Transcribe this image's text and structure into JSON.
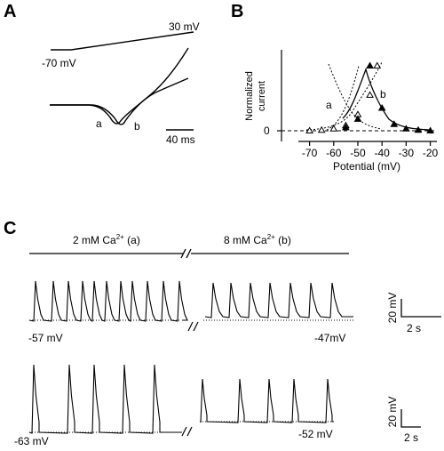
{
  "panels": {
    "A": {
      "letter": "A",
      "ramp_start_label": "-70 mV",
      "ramp_end_label": "30 mV",
      "trace_a_label": "a",
      "trace_b_label": "b",
      "scale_time_label": "40 ms"
    },
    "B": {
      "letter": "B",
      "ylabel_line1": "Normalized",
      "ylabel_line2": "current",
      "y_zero_label": "0",
      "curve_a_label": "a",
      "curve_b_label": "b",
      "xlabel": "Potential (mV)"
    },
    "C": {
      "letter": "C",
      "cond_left_label": "2 mM Ca2+ (a)",
      "cond_right_label": "8 mM Ca2+ (b)",
      "cond_left_prefix": "2 mM Ca",
      "cond_left_sup": "2+",
      "cond_left_suffix": " (a)",
      "cond_right_prefix": "8 mM Ca",
      "cond_right_sup": "2+",
      "cond_right_suffix": " (b)",
      "row1_left_baseline": "-57 mV",
      "row1_right_baseline": "-47mV",
      "row2_left_baseline": "-63 mV",
      "row2_right_baseline": "-52 mV",
      "scale1_voltage": "20 mV",
      "scale1_time": "2 s",
      "scale2_voltage": "20 mV",
      "scale2_time": "2 s"
    }
  },
  "chart_data": {
    "type": "scatter",
    "xlabel": "Potential (mV)",
    "ylabel": "Normalized current",
    "x_ticks": [
      -70,
      -60,
      -50,
      -40,
      -30,
      -20
    ],
    "y_ticks": [
      0
    ],
    "xlim": [
      -75,
      -18
    ],
    "series": [
      {
        "name": "a",
        "style": "open triangles, dotted fit",
        "points": [
          [
            -70,
            0
          ],
          [
            -65,
            0.01
          ],
          [
            -60,
            0.03
          ],
          [
            -55,
            0.08
          ],
          [
            -50,
            0.25
          ],
          [
            -45,
            0.55
          ],
          [
            -42,
            1.0
          ]
        ]
      },
      {
        "name": "b",
        "style": "filled triangles, solid fit",
        "points": [
          [
            -55,
            0.05
          ],
          [
            -50,
            0.18
          ],
          [
            -45,
            1.0
          ],
          [
            -40,
            0.35
          ],
          [
            -35,
            0.1
          ],
          [
            -30,
            0.03
          ],
          [
            -25,
            0.01
          ],
          [
            -20,
            0.0
          ]
        ]
      }
    ]
  }
}
